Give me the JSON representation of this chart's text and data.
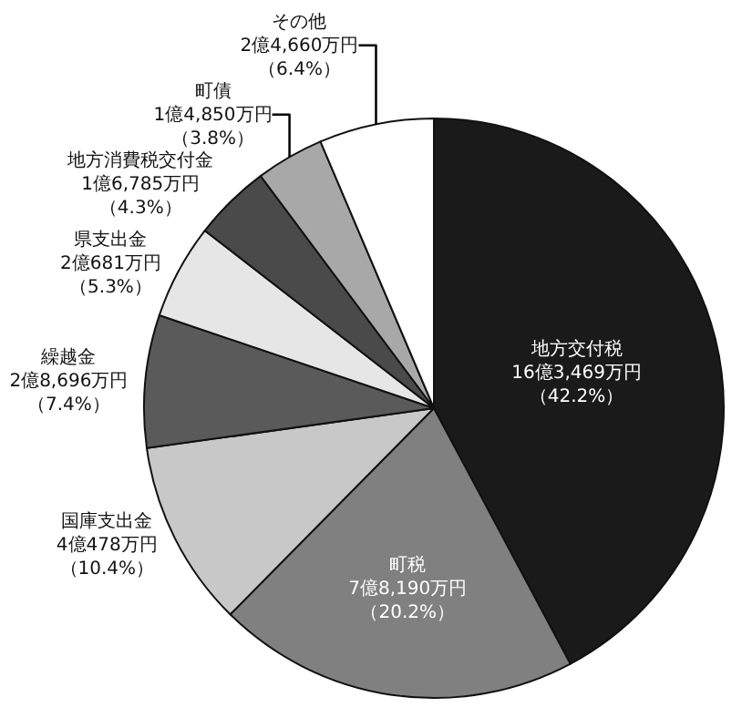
{
  "chart_data": {
    "type": "pie",
    "categories": [
      "地方交付税",
      "町税",
      "国庫支出金",
      "繰越金",
      "県支出金",
      "地方消費税交付金",
      "町債",
      "その他"
    ],
    "values": [
      42.2,
      20.2,
      10.4,
      7.4,
      5.3,
      4.3,
      3.8,
      6.4
    ],
    "value_labels": [
      "16億3,469万円（42.2%）",
      "7億8,190万円（20.2%）",
      "4億478万円（10.4%）",
      "2億8,696万円（7.4%）",
      "2億681万円（5.3%）",
      "1億6,785万円（4.3%）",
      "1億4,850万円（3.8%）",
      "2億4,660万円（6.4%）"
    ],
    "colors": [
      "#1a1a1a",
      "#808080",
      "#c8c8c8",
      "#5a5a5a",
      "#e6e6e6",
      "#4a4a4a",
      "#a8a8a8",
      "#ffffff"
    ],
    "legend": false
  }
}
